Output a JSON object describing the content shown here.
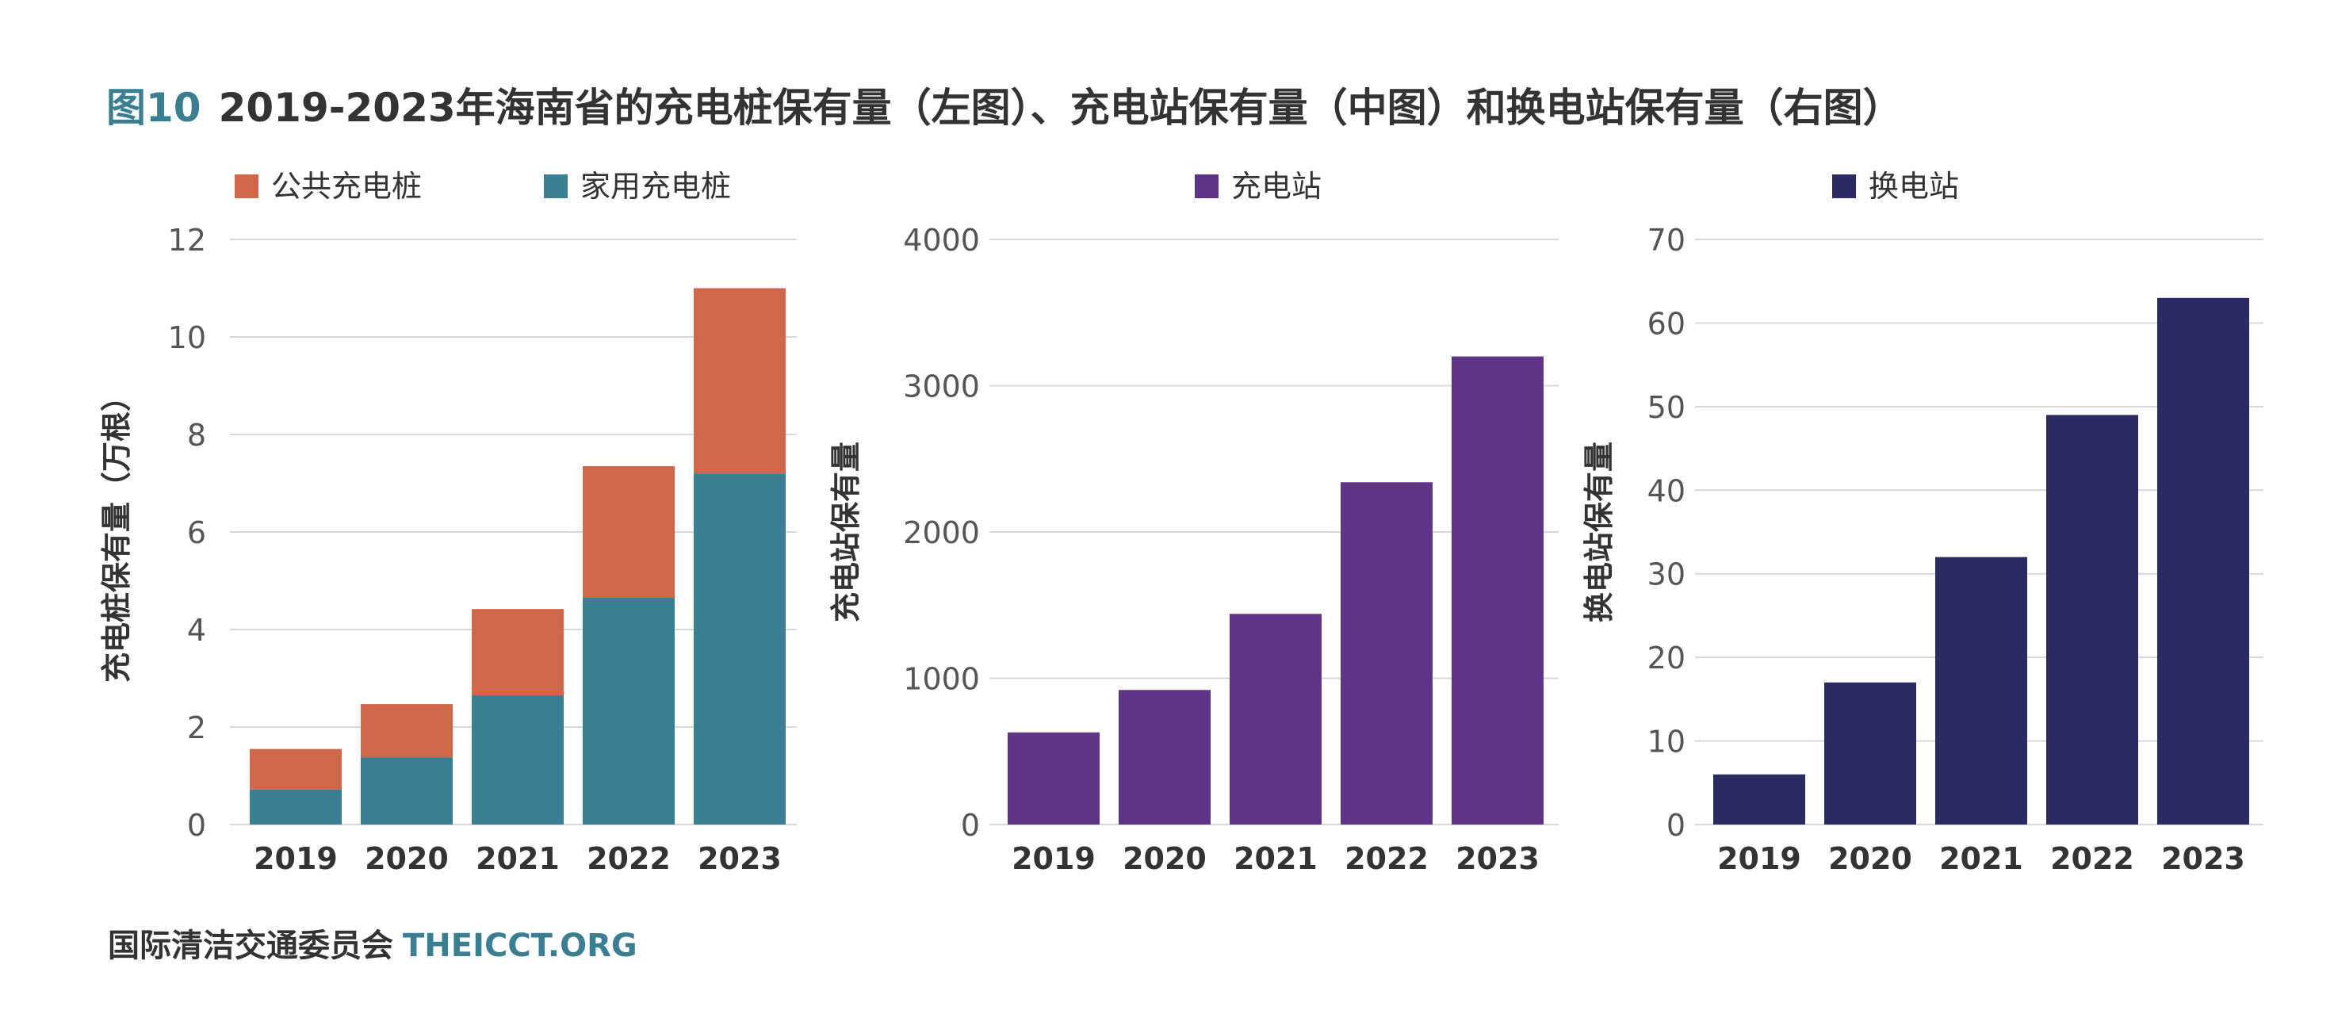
{
  "title": {
    "figure_label": "图10",
    "text": "2019-2023年海南省的充电桩保有量（左图）、充电站保有量（中图）和换电站保有量（右图）"
  },
  "footer": {
    "org": "国际清洁交通委员会",
    "site": "THEICCT.ORG"
  },
  "colors": {
    "public_pile": "#d2664a",
    "home_pile": "#3a7f91",
    "charging_station": "#5f3486",
    "swap_station": "#2b2a62",
    "grid": "#d9d9d9",
    "axis_text": "#555555",
    "category_text": "#333333"
  },
  "chart_data": [
    {
      "type": "bar",
      "stacked": true,
      "categories": [
        "2019",
        "2020",
        "2021",
        "2022",
        "2023"
      ],
      "series": [
        {
          "name": "家用充电桩",
          "values": [
            0.72,
            1.38,
            2.65,
            4.65,
            7.2
          ]
        },
        {
          "name": "公共充电桩",
          "values": [
            0.83,
            1.09,
            1.77,
            2.7,
            3.8
          ]
        }
      ],
      "ylabel": "充电桩保有量（万根）",
      "ylim": [
        0,
        12
      ],
      "yticks": [
        0,
        2,
        4,
        6,
        8,
        10,
        12
      ],
      "grid": true,
      "legend": "top"
    },
    {
      "type": "bar",
      "categories": [
        "2019",
        "2020",
        "2021",
        "2022",
        "2023"
      ],
      "series": [
        {
          "name": "充电站",
          "values": [
            630,
            920,
            1440,
            2340,
            3200
          ]
        }
      ],
      "ylabel": "充电站保有量",
      "ylim": [
        0,
        4000
      ],
      "yticks": [
        0,
        1000,
        2000,
        3000,
        4000
      ],
      "grid": true,
      "legend": "top"
    },
    {
      "type": "bar",
      "categories": [
        "2019",
        "2020",
        "2021",
        "2022",
        "2023"
      ],
      "series": [
        {
          "name": "换电站",
          "values": [
            6,
            17,
            32,
            49,
            63
          ]
        }
      ],
      "ylabel": "换电站保有量",
      "ylim": [
        0,
        70
      ],
      "yticks": [
        0,
        10,
        20,
        30,
        40,
        50,
        60,
        70
      ],
      "grid": true,
      "legend": "top"
    }
  ]
}
